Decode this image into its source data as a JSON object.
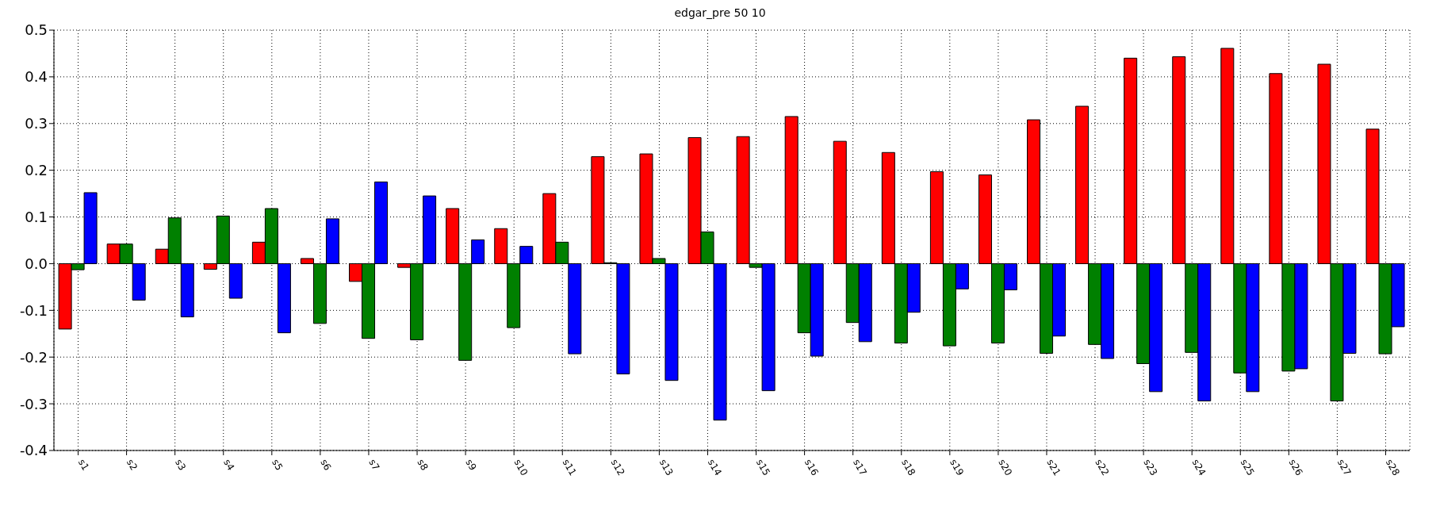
{
  "chart_data": {
    "type": "bar",
    "title": "edgar_pre 50 10",
    "categories": [
      "s1",
      "s2",
      "s3",
      "s4",
      "s5",
      "s6",
      "s7",
      "s8",
      "s9",
      "s10",
      "s11",
      "s12",
      "s13",
      "s14",
      "s15",
      "s16",
      "s17",
      "s18",
      "s19",
      "s20",
      "s21",
      "s22",
      "s23",
      "s24",
      "s25",
      "s26",
      "s27",
      "s28"
    ],
    "series": [
      {
        "color": "#ff0000",
        "values": [
          -0.14,
          0.042,
          0.031,
          -0.012,
          0.046,
          0.011,
          -0.038,
          -0.008,
          0.118,
          0.075,
          0.15,
          0.229,
          0.235,
          0.27,
          0.272,
          0.315,
          0.262,
          0.238,
          0.197,
          0.19,
          0.308,
          0.337,
          0.44,
          0.443,
          0.461,
          0.407,
          0.427,
          0.288
        ]
      },
      {
        "color": "#008000",
        "values": [
          -0.013,
          0.042,
          0.098,
          0.102,
          0.118,
          -0.128,
          -0.16,
          -0.163,
          -0.207,
          -0.137,
          0.046,
          0.002,
          0.011,
          0.068,
          -0.008,
          -0.148,
          -0.126,
          -0.17,
          -0.176,
          -0.17,
          -0.192,
          -0.173,
          -0.214,
          -0.19,
          -0.234,
          -0.23,
          -0.294,
          -0.193
        ]
      },
      {
        "color": "#0000ff",
        "values": [
          0.152,
          -0.078,
          -0.114,
          -0.074,
          -0.148,
          0.096,
          0.175,
          0.145,
          0.051,
          0.037,
          -0.193,
          -0.236,
          -0.25,
          -0.335,
          -0.272,
          -0.198,
          -0.167,
          -0.104,
          -0.054,
          -0.056,
          -0.155,
          -0.203,
          -0.274,
          -0.294,
          -0.274,
          -0.225,
          -0.192,
          -0.135
        ]
      }
    ],
    "ylim": [
      -0.4,
      0.5
    ],
    "yticks": [
      {
        "value": -0.4,
        "label": "-0.4"
      },
      {
        "value": -0.3,
        "label": "-0.3"
      },
      {
        "value": -0.2,
        "label": "-0.2"
      },
      {
        "value": -0.1,
        "label": "-0.1"
      },
      {
        "value": 0,
        "label": "0.0"
      },
      {
        "value": 0.1,
        "label": "0.1"
      },
      {
        "value": 0.2,
        "label": "0.2"
      },
      {
        "value": 0.3,
        "label": "0.3"
      },
      {
        "value": 0.4,
        "label": "0.4"
      },
      {
        "value": 0.5,
        "label": "0.5"
      }
    ],
    "grid": true
  }
}
